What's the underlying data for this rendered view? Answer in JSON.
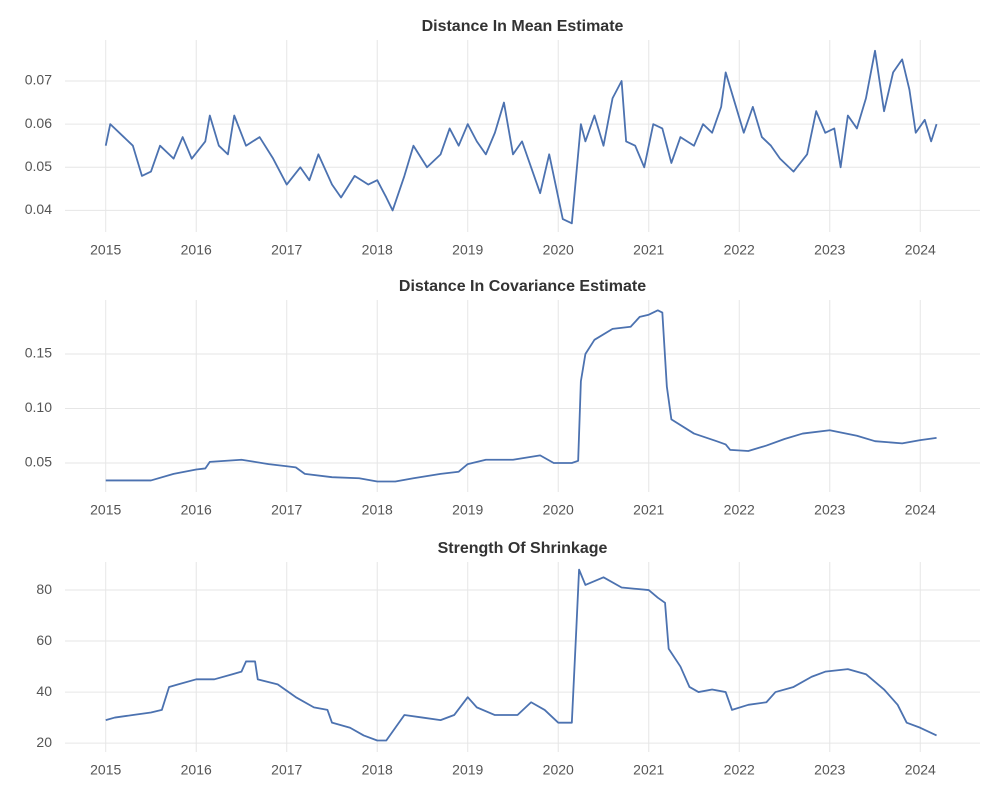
{
  "chart_data": [
    {
      "type": "line",
      "title": "Distance In Mean Estimate",
      "color": "#4c72b0",
      "grid": true,
      "xlim": [
        2014.55,
        2024.66
      ],
      "ylim": [
        0.035,
        0.0795
      ],
      "xticks": [
        2015,
        2016,
        2017,
        2018,
        2019,
        2020,
        2021,
        2022,
        2023,
        2024
      ],
      "yticks": [
        0.04,
        0.05,
        0.06,
        0.07
      ],
      "x": [
        2015.0,
        2015.05,
        2015.2,
        2015.3,
        2015.4,
        2015.5,
        2015.6,
        2015.75,
        2015.85,
        2015.95,
        2016.1,
        2016.15,
        2016.25,
        2016.35,
        2016.42,
        2016.55,
        2016.7,
        2016.85,
        2017.0,
        2017.15,
        2017.25,
        2017.35,
        2017.5,
        2017.6,
        2017.75,
        2017.9,
        2018.0,
        2018.1,
        2018.17,
        2018.3,
        2018.4,
        2018.55,
        2018.7,
        2018.8,
        2018.9,
        2019.0,
        2019.1,
        2019.2,
        2019.3,
        2019.4,
        2019.5,
        2019.6,
        2019.7,
        2019.8,
        2019.9,
        2020.0,
        2020.05,
        2020.15,
        2020.25,
        2020.3,
        2020.4,
        2020.5,
        2020.6,
        2020.7,
        2020.75,
        2020.85,
        2020.95,
        2021.05,
        2021.15,
        2021.25,
        2021.35,
        2021.5,
        2021.6,
        2021.7,
        2021.8,
        2021.85,
        2021.95,
        2022.05,
        2022.15,
        2022.25,
        2022.35,
        2022.45,
        2022.6,
        2022.75,
        2022.85,
        2022.95,
        2023.05,
        2023.12,
        2023.2,
        2023.3,
        2023.4,
        2023.5,
        2023.6,
        2023.7,
        2023.8,
        2023.88,
        2023.95,
        2024.05,
        2024.12,
        2024.18
      ],
      "values": [
        0.055,
        0.06,
        0.057,
        0.055,
        0.048,
        0.049,
        0.055,
        0.052,
        0.057,
        0.052,
        0.056,
        0.062,
        0.055,
        0.053,
        0.062,
        0.055,
        0.057,
        0.052,
        0.046,
        0.05,
        0.047,
        0.053,
        0.046,
        0.043,
        0.048,
        0.046,
        0.047,
        0.043,
        0.04,
        0.048,
        0.055,
        0.05,
        0.053,
        0.059,
        0.055,
        0.06,
        0.056,
        0.053,
        0.058,
        0.065,
        0.053,
        0.056,
        0.05,
        0.044,
        0.053,
        0.043,
        0.038,
        0.037,
        0.06,
        0.056,
        0.062,
        0.055,
        0.066,
        0.07,
        0.056,
        0.055,
        0.05,
        0.06,
        0.059,
        0.051,
        0.057,
        0.055,
        0.06,
        0.058,
        0.064,
        0.072,
        0.065,
        0.058,
        0.064,
        0.057,
        0.055,
        0.052,
        0.049,
        0.053,
        0.063,
        0.058,
        0.059,
        0.05,
        0.062,
        0.059,
        0.066,
        0.077,
        0.063,
        0.072,
        0.075,
        0.068,
        0.058,
        0.061,
        0.056,
        0.06
      ]
    },
    {
      "type": "line",
      "title": "Distance In Covariance Estimate",
      "color": "#4c72b0",
      "grid": true,
      "xlim": [
        2014.55,
        2024.66
      ],
      "ylim": [
        0.0234,
        0.1995
      ],
      "xticks": [
        2015,
        2016,
        2017,
        2018,
        2019,
        2020,
        2021,
        2022,
        2023,
        2024
      ],
      "yticks": [
        0.05,
        {
          "value": 0.1,
          "label": "0.10"
        },
        0.15
      ],
      "x": [
        2015.0,
        2015.5,
        2015.75,
        2016.0,
        2016.1,
        2016.15,
        2016.5,
        2016.8,
        2017.0,
        2017.1,
        2017.2,
        2017.5,
        2017.8,
        2018.0,
        2018.2,
        2018.4,
        2018.7,
        2018.9,
        2019.0,
        2019.2,
        2019.5,
        2019.8,
        2019.95,
        2020.15,
        2020.22,
        2020.25,
        2020.3,
        2020.4,
        2020.6,
        2020.8,
        2020.9,
        2021.0,
        2021.1,
        2021.15,
        2021.2,
        2021.25,
        2021.5,
        2021.75,
        2021.85,
        2021.9,
        2022.1,
        2022.3,
        2022.5,
        2022.7,
        2023.0,
        2023.3,
        2023.5,
        2023.8,
        2024.0,
        2024.18
      ],
      "values": [
        0.034,
        0.034,
        0.04,
        0.044,
        0.045,
        0.051,
        0.053,
        0.049,
        0.047,
        0.046,
        0.04,
        0.037,
        0.036,
        0.033,
        0.033,
        0.036,
        0.04,
        0.042,
        0.049,
        0.053,
        0.053,
        0.057,
        0.05,
        0.05,
        0.052,
        0.125,
        0.15,
        0.163,
        0.173,
        0.175,
        0.184,
        0.186,
        0.19,
        0.188,
        0.12,
        0.09,
        0.077,
        0.07,
        0.067,
        0.062,
        0.061,
        0.066,
        0.072,
        0.077,
        0.08,
        0.075,
        0.07,
        0.068,
        0.071,
        0.073
      ]
    },
    {
      "type": "line",
      "title": "Strength Of Shrinkage",
      "color": "#4c72b0",
      "grid": true,
      "xlim": [
        2014.55,
        2024.66
      ],
      "ylim": [
        16.5,
        91
      ],
      "xticks": [
        2015,
        2016,
        2017,
        2018,
        2019,
        2020,
        2021,
        2022,
        2023,
        2024
      ],
      "yticks": [
        20,
        40,
        60,
        80
      ],
      "x": [
        2015.0,
        2015.1,
        2015.3,
        2015.5,
        2015.62,
        2015.7,
        2015.8,
        2016.0,
        2016.2,
        2016.4,
        2016.5,
        2016.55,
        2016.65,
        2016.68,
        2016.9,
        2017.1,
        2017.3,
        2017.45,
        2017.5,
        2017.7,
        2017.85,
        2018.0,
        2018.1,
        2018.2,
        2018.3,
        2018.5,
        2018.7,
        2018.85,
        2019.0,
        2019.1,
        2019.3,
        2019.55,
        2019.7,
        2019.85,
        2020.0,
        2020.15,
        2020.2,
        2020.23,
        2020.3,
        2020.5,
        2020.7,
        2021.0,
        2021.1,
        2021.18,
        2021.22,
        2021.35,
        2021.45,
        2021.55,
        2021.7,
        2021.85,
        2021.92,
        2022.1,
        2022.3,
        2022.4,
        2022.6,
        2022.8,
        2022.95,
        2023.2,
        2023.4,
        2023.6,
        2023.75,
        2023.85,
        2024.0,
        2024.18
      ],
      "values": [
        29,
        30,
        31,
        32,
        33,
        42,
        43,
        45,
        45,
        47,
        48,
        52,
        52,
        45,
        43,
        38,
        34,
        33,
        28,
        26,
        23,
        21,
        21,
        26,
        31,
        30,
        29,
        31,
        38,
        34,
        31,
        31,
        36,
        33,
        28,
        28,
        65,
        88,
        82,
        85,
        81,
        80,
        77,
        75,
        57,
        50,
        42,
        40,
        41,
        40,
        33,
        35,
        36,
        40,
        42,
        46,
        48,
        49,
        47,
        41,
        35,
        28,
        26,
        23
      ]
    }
  ]
}
